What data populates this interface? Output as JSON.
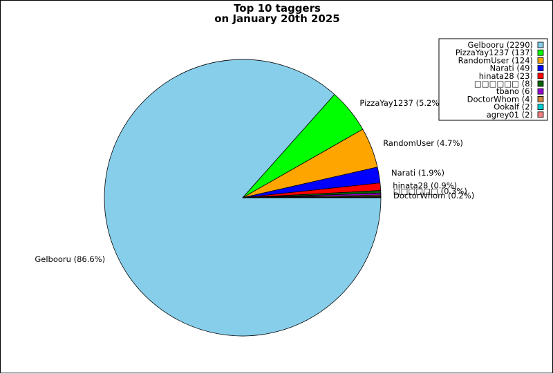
{
  "chart_data": {
    "type": "pie",
    "title": "Top 10 taggers",
    "subtitle": "on January 20th 2025",
    "legend_position": "top-right",
    "slices": [
      {
        "name": "Gelbooru",
        "value": 2290,
        "legend_label": "Gelbooru (2290)",
        "slice_label": "Gelbooru (86.6%)",
        "color": "#87ceeb"
      },
      {
        "name": "PizzaYay1237",
        "value": 137,
        "legend_label": "PizzaYay1237 (137)",
        "slice_label": "PizzaYay1237 (5.2%)",
        "color": "#00ff00"
      },
      {
        "name": "RandomUser",
        "value": 124,
        "legend_label": "RandomUser (124)",
        "slice_label": "RandomUser (4.7%)",
        "color": "#ffa500"
      },
      {
        "name": "Narati",
        "value": 49,
        "legend_label": "Narati (49)",
        "slice_label": "Narati (1.9%)",
        "color": "#0000ff"
      },
      {
        "name": "hinata28",
        "value": 23,
        "legend_label": "hinata28 (23)",
        "slice_label": "hinata28 (0.9%)",
        "color": "#ff0000"
      },
      {
        "name": "□□□□□□",
        "value": 8,
        "legend_label": "□□□□□□ (8)",
        "slice_label": "□□□□□□ (0.3%)",
        "color": "#006400"
      },
      {
        "name": "tbano",
        "value": 6,
        "legend_label": "tbano (6)",
        "slice_label": "",
        "color": "#9400d3"
      },
      {
        "name": "DoctorWhom",
        "value": 4,
        "legend_label": "DoctorWhom (4)",
        "slice_label": "DoctorWhom (0.2%)",
        "color": "#cd853f"
      },
      {
        "name": "Ookalf",
        "value": 2,
        "legend_label": "Ookalf (2)",
        "slice_label": "",
        "color": "#00ced1"
      },
      {
        "name": "agrey01",
        "value": 2,
        "legend_label": "agrey01 (2)",
        "slice_label": "",
        "color": "#f08080"
      }
    ]
  }
}
